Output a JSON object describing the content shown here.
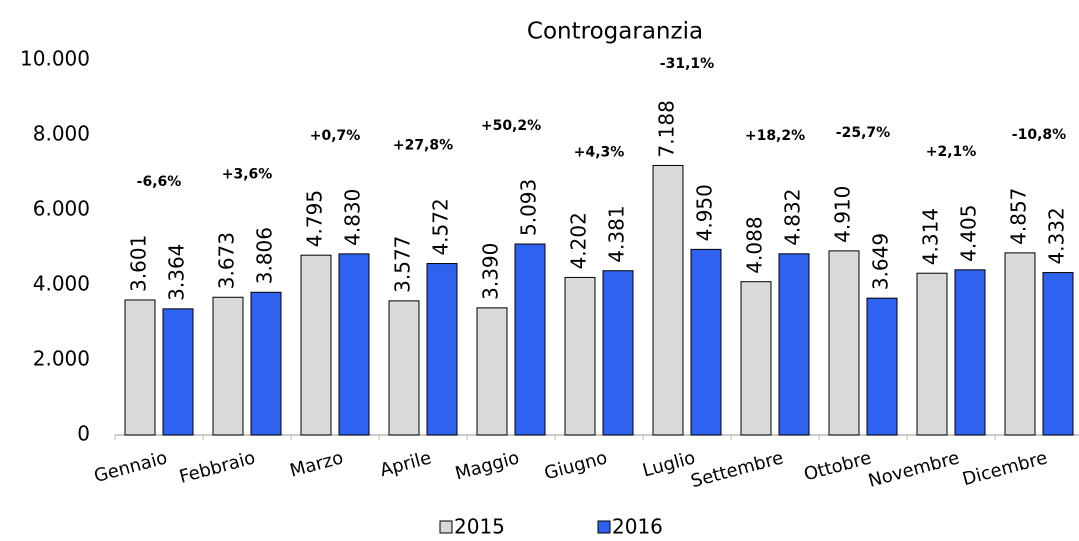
{
  "chart_data": {
    "type": "bar",
    "title": "Controgaranzia",
    "categories": [
      "Gennaio",
      "Febbraio",
      "Marzo",
      "Aprile",
      "Maggio",
      "Giugno",
      "Luglio",
      "Settembre",
      "Ottobre",
      "Novembre",
      "Dicembre"
    ],
    "series": [
      {
        "name": "2015",
        "color": "#d9d9d9",
        "values": [
          3601,
          3673,
          4795,
          3577,
          3390,
          4202,
          7188,
          4088,
          4910,
          4314,
          4857
        ],
        "value_labels": [
          "3.601",
          "3.673",
          "4.795",
          "3.577",
          "3.390",
          "4.202",
          "7.188",
          "4.088",
          "4.910",
          "4.314",
          "4.857"
        ]
      },
      {
        "name": "2016",
        "color": "#3062f0",
        "values": [
          3364,
          3806,
          4830,
          4572,
          5093,
          4381,
          4950,
          4832,
          3649,
          4405,
          4332
        ],
        "value_labels": [
          "3.364",
          "3.806",
          "4.830",
          "4.572",
          "5.093",
          "4.381",
          "4.950",
          "4.832",
          "3.649",
          "4.405",
          "4.332"
        ]
      }
    ],
    "annotations": [
      "-6,6%",
      "+3,6%",
      "+0,7%",
      "+27,8%",
      "+50,2%",
      "+4,3%",
      "-31,1%",
      "+18,2%",
      "-25,7%",
      "+2,1%",
      "-10,8%"
    ],
    "ylim": [
      0,
      10000
    ],
    "yticks": [
      0,
      {
        "value": 2000,
        "label": "2.000"
      },
      {
        "value": 4000,
        "label": "4.000"
      },
      {
        "value": 6000,
        "label": "6.000"
      },
      {
        "value": 8000,
        "label": "8.000"
      },
      {
        "value": 10000,
        "label": "10.000"
      }
    ],
    "grid": false,
    "legend": "bottom"
  }
}
